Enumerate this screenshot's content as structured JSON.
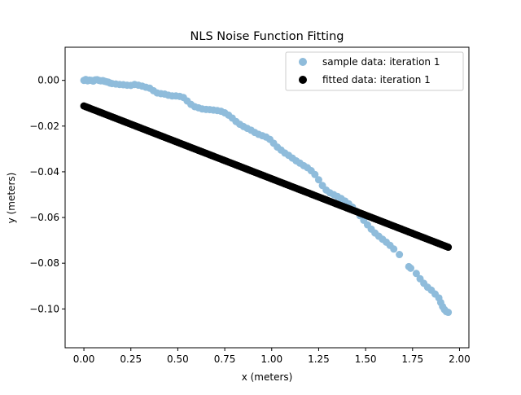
{
  "chart_data": {
    "type": "scatter",
    "title": "NLS Noise Function Fitting",
    "xlabel": "x (meters)",
    "ylabel": "y (meters)",
    "xlim": [
      -0.1,
      2.05
    ],
    "ylim": [
      -0.117,
      0.0145
    ],
    "xticks": [
      0.0,
      0.25,
      0.5,
      0.75,
      1.0,
      1.25,
      1.5,
      1.75,
      2.0
    ],
    "xtick_labels": [
      "0.00",
      "0.25",
      "0.50",
      "0.75",
      "1.00",
      "1.25",
      "1.50",
      "1.75",
      "2.00"
    ],
    "yticks": [
      0.0,
      -0.02,
      -0.04,
      -0.06,
      -0.08,
      -0.1
    ],
    "ytick_labels": [
      "0.00",
      "−0.02",
      "−0.04",
      "−0.06",
      "−0.08",
      "−0.10"
    ],
    "grid": false,
    "legend_position": "top-right",
    "series": [
      {
        "name": "sample data: iteration 1",
        "color": "#8fbcdb",
        "points": [
          [
            0.0,
            0.0
          ],
          [
            0.01,
            0.0004
          ],
          [
            0.02,
            -0.0002
          ],
          [
            0.03,
            0.0001
          ],
          [
            0.04,
            0.0
          ],
          [
            0.05,
            -0.0003
          ],
          [
            0.06,
            0.0002
          ],
          [
            0.07,
            0.0003
          ],
          [
            0.08,
            0.0
          ],
          [
            0.09,
            -0.0002
          ],
          [
            0.1,
            -0.0001
          ],
          [
            0.11,
            -0.0004
          ],
          [
            0.12,
            -0.0006
          ],
          [
            0.13,
            -0.0008
          ],
          [
            0.14,
            -0.0012
          ],
          [
            0.15,
            -0.0014
          ],
          [
            0.17,
            -0.0016
          ],
          [
            0.19,
            -0.0018
          ],
          [
            0.21,
            -0.0019
          ],
          [
            0.23,
            -0.0021
          ],
          [
            0.25,
            -0.0022
          ],
          [
            0.27,
            -0.0018
          ],
          [
            0.29,
            -0.0021
          ],
          [
            0.31,
            -0.0025
          ],
          [
            0.33,
            -0.003
          ],
          [
            0.35,
            -0.0034
          ],
          [
            0.37,
            -0.0045
          ],
          [
            0.39,
            -0.0055
          ],
          [
            0.41,
            -0.0058
          ],
          [
            0.43,
            -0.006
          ],
          [
            0.45,
            -0.0065
          ],
          [
            0.47,
            -0.0068
          ],
          [
            0.49,
            -0.0068
          ],
          [
            0.51,
            -0.007
          ],
          [
            0.53,
            -0.0075
          ],
          [
            0.55,
            -0.009
          ],
          [
            0.57,
            -0.0105
          ],
          [
            0.59,
            -0.0115
          ],
          [
            0.61,
            -0.012
          ],
          [
            0.63,
            -0.0125
          ],
          [
            0.65,
            -0.0127
          ],
          [
            0.67,
            -0.0128
          ],
          [
            0.69,
            -0.013
          ],
          [
            0.71,
            -0.0132
          ],
          [
            0.73,
            -0.0135
          ],
          [
            0.75,
            -0.0142
          ],
          [
            0.77,
            -0.0152
          ],
          [
            0.79,
            -0.0165
          ],
          [
            0.81,
            -0.018
          ],
          [
            0.83,
            -0.0192
          ],
          [
            0.85,
            -0.0202
          ],
          [
            0.87,
            -0.021
          ],
          [
            0.89,
            -0.0218
          ],
          [
            0.91,
            -0.0228
          ],
          [
            0.93,
            -0.0236
          ],
          [
            0.95,
            -0.0242
          ],
          [
            0.97,
            -0.0248
          ],
          [
            0.99,
            -0.0258
          ],
          [
            1.01,
            -0.0275
          ],
          [
            1.03,
            -0.0292
          ],
          [
            1.05,
            -0.0305
          ],
          [
            1.07,
            -0.0318
          ],
          [
            1.09,
            -0.0328
          ],
          [
            1.11,
            -0.034
          ],
          [
            1.13,
            -0.0352
          ],
          [
            1.15,
            -0.0362
          ],
          [
            1.17,
            -0.0373
          ],
          [
            1.19,
            -0.0382
          ],
          [
            1.21,
            -0.0395
          ],
          [
            1.23,
            -0.0412
          ],
          [
            1.25,
            -0.0435
          ],
          [
            1.27,
            -0.046
          ],
          [
            1.29,
            -0.048
          ],
          [
            1.31,
            -0.0492
          ],
          [
            1.33,
            -0.05
          ],
          [
            1.35,
            -0.0508
          ],
          [
            1.37,
            -0.0517
          ],
          [
            1.39,
            -0.0528
          ],
          [
            1.41,
            -0.054
          ],
          [
            1.43,
            -0.0555
          ],
          [
            1.45,
            -0.0572
          ],
          [
            1.47,
            -0.0592
          ],
          [
            1.49,
            -0.0612
          ],
          [
            1.51,
            -0.0632
          ],
          [
            1.53,
            -0.0651
          ],
          [
            1.55,
            -0.0668
          ],
          [
            1.57,
            -0.0682
          ],
          [
            1.59,
            -0.0695
          ],
          [
            1.61,
            -0.0708
          ],
          [
            1.63,
            -0.0722
          ],
          [
            1.65,
            -0.0738
          ],
          [
            1.68,
            -0.0762
          ],
          [
            1.73,
            -0.0815
          ],
          [
            1.74,
            -0.0822
          ],
          [
            1.77,
            -0.0845
          ],
          [
            1.79,
            -0.0868
          ],
          [
            1.81,
            -0.0888
          ],
          [
            1.83,
            -0.0905
          ],
          [
            1.85,
            -0.0918
          ],
          [
            1.87,
            -0.0935
          ],
          [
            1.89,
            -0.0952
          ],
          [
            1.9,
            -0.0972
          ],
          [
            1.91,
            -0.099
          ],
          [
            1.92,
            -0.1003
          ],
          [
            1.93,
            -0.1012
          ],
          [
            1.94,
            -0.1015
          ]
        ]
      },
      {
        "name": "fitted data: iteration 1",
        "color": "#000000",
        "line": {
          "x_start": 0.0,
          "x_end": 1.94,
          "y_start": -0.0112,
          "y_end": -0.073,
          "step": 0.01
        }
      }
    ]
  }
}
